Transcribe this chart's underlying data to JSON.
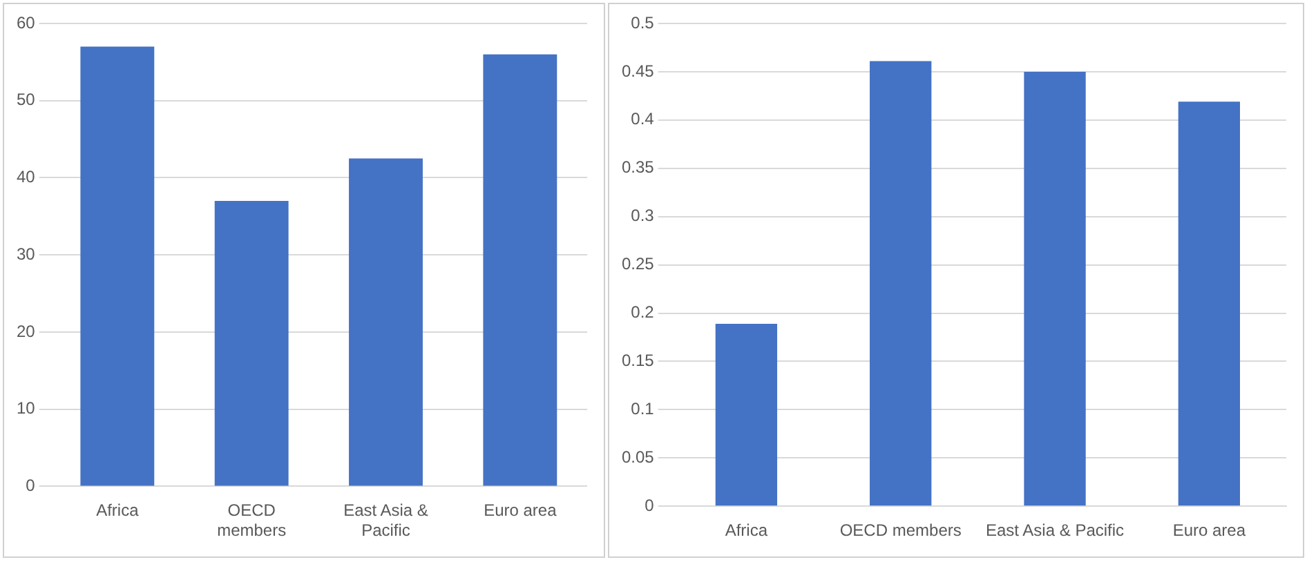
{
  "chart_data": [
    {
      "type": "bar",
      "categories": [
        "Africa",
        "OECD members",
        "East Asia & Pacific",
        "Euro area"
      ],
      "values": [
        57,
        37,
        42.5,
        56
      ],
      "color": "#4472c4",
      "ylim": [
        0,
        60
      ],
      "yticks": [
        0,
        10,
        20,
        30,
        40,
        50,
        60
      ],
      "grid": "y"
    },
    {
      "type": "bar",
      "categories": [
        "Africa",
        "OECD members",
        "East Asia & Pacific",
        "Euro area"
      ],
      "values": [
        0.189,
        0.461,
        0.45,
        0.419
      ],
      "color": "#4472c4",
      "ylim": [
        0,
        0.5
      ],
      "yticks": [
        0,
        0.05,
        0.1,
        0.15,
        0.2,
        0.25,
        0.3,
        0.35,
        0.4,
        0.45,
        0.5
      ],
      "grid": "y"
    }
  ]
}
